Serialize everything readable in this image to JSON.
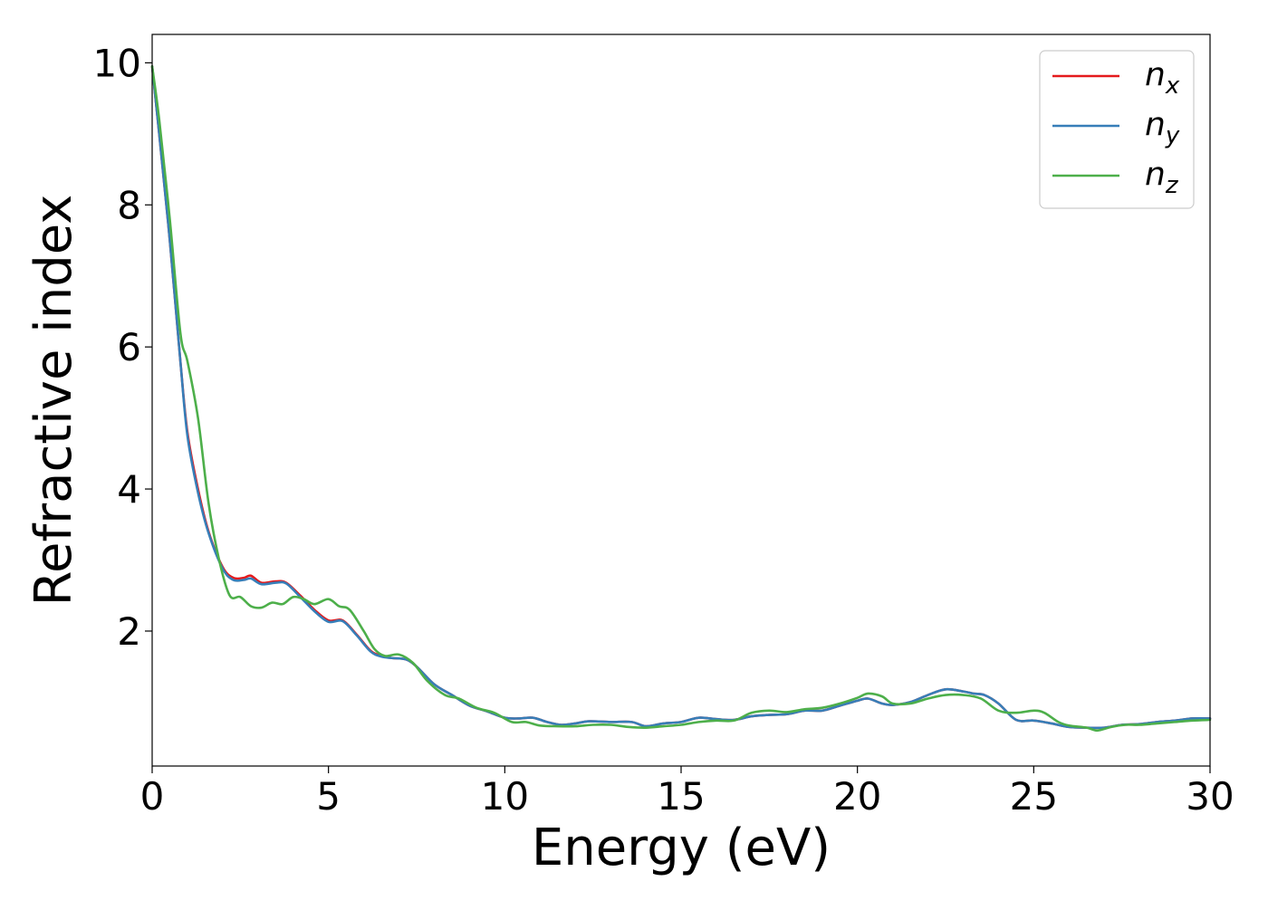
{
  "chart_data": {
    "type": "line",
    "xlabel": "Energy (eV)",
    "ylabel": "Refractive index",
    "xlim": [
      0,
      30
    ],
    "ylim": [
      0.1,
      10.4
    ],
    "xticks": [
      "0",
      "5",
      "10",
      "15",
      "20",
      "25",
      "30"
    ],
    "yticks": [
      "2",
      "4",
      "6",
      "8",
      "10"
    ],
    "grid": false,
    "legend_position": "top-right",
    "series": [
      {
        "name": "n",
        "subscript": "x",
        "color": "#e41a1c",
        "x": [
          0,
          0.2,
          0.5,
          0.8,
          1.0,
          1.3,
          1.6,
          2.0,
          2.3,
          2.6,
          2.8,
          3.1,
          3.5,
          3.8,
          4.2,
          4.6,
          5.0,
          5.4,
          5.8,
          6.2,
          6.5,
          6.8,
          7.2,
          7.5,
          8.0,
          8.5,
          9.0,
          9.5,
          10.0,
          10.4,
          10.8,
          11.2,
          11.6,
          12.0,
          12.4,
          13.0,
          13.6,
          14.0,
          14.5,
          15.0,
          15.5,
          16.0,
          16.5,
          17.0,
          17.5,
          18.0,
          18.5,
          19.0,
          19.5,
          20.0,
          20.3,
          20.7,
          21.0,
          21.5,
          22.0,
          22.5,
          23.0,
          23.3,
          23.6,
          24.0,
          24.5,
          25.0,
          25.5,
          26.0,
          26.5,
          27.0,
          27.5,
          28.0,
          28.5,
          29.0,
          29.5,
          30.0
        ],
        "y": [
          9.95,
          9.0,
          7.5,
          5.8,
          4.8,
          4.0,
          3.4,
          2.9,
          2.75,
          2.75,
          2.78,
          2.68,
          2.7,
          2.68,
          2.5,
          2.3,
          2.15,
          2.15,
          1.95,
          1.72,
          1.65,
          1.62,
          1.6,
          1.5,
          1.25,
          1.1,
          0.95,
          0.87,
          0.78,
          0.77,
          0.78,
          0.72,
          0.68,
          0.7,
          0.73,
          0.72,
          0.72,
          0.66,
          0.7,
          0.72,
          0.78,
          0.76,
          0.75,
          0.8,
          0.82,
          0.83,
          0.88,
          0.88,
          0.95,
          1.02,
          1.05,
          0.98,
          0.96,
          1.0,
          1.1,
          1.18,
          1.15,
          1.12,
          1.1,
          0.98,
          0.75,
          0.74,
          0.7,
          0.65,
          0.64,
          0.64,
          0.68,
          0.69,
          0.72,
          0.74,
          0.77,
          0.77
        ]
      },
      {
        "name": "n",
        "subscript": "y",
        "color": "#377eb8",
        "x": [
          0,
          0.2,
          0.5,
          0.8,
          1.0,
          1.3,
          1.6,
          2.0,
          2.3,
          2.6,
          2.8,
          3.1,
          3.5,
          3.8,
          4.2,
          4.6,
          5.0,
          5.4,
          5.8,
          6.2,
          6.5,
          6.8,
          7.2,
          7.5,
          8.0,
          8.5,
          9.0,
          9.5,
          10.0,
          10.4,
          10.8,
          11.2,
          11.6,
          12.0,
          12.4,
          13.0,
          13.6,
          14.0,
          14.5,
          15.0,
          15.5,
          16.0,
          16.5,
          17.0,
          17.5,
          18.0,
          18.5,
          19.0,
          19.5,
          20.0,
          20.3,
          20.7,
          21.0,
          21.5,
          22.0,
          22.5,
          23.0,
          23.3,
          23.6,
          24.0,
          24.5,
          25.0,
          25.5,
          26.0,
          26.5,
          27.0,
          27.5,
          28.0,
          28.5,
          29.0,
          29.5,
          30.0
        ],
        "y": [
          9.95,
          9.0,
          7.5,
          5.8,
          4.75,
          3.95,
          3.38,
          2.88,
          2.72,
          2.72,
          2.74,
          2.66,
          2.68,
          2.67,
          2.48,
          2.28,
          2.13,
          2.14,
          1.94,
          1.71,
          1.64,
          1.62,
          1.6,
          1.5,
          1.25,
          1.1,
          0.95,
          0.87,
          0.78,
          0.77,
          0.78,
          0.72,
          0.68,
          0.7,
          0.73,
          0.72,
          0.72,
          0.66,
          0.7,
          0.72,
          0.78,
          0.76,
          0.75,
          0.8,
          0.82,
          0.83,
          0.88,
          0.88,
          0.95,
          1.02,
          1.05,
          0.98,
          0.96,
          1.0,
          1.1,
          1.18,
          1.15,
          1.12,
          1.1,
          0.98,
          0.75,
          0.74,
          0.7,
          0.65,
          0.64,
          0.64,
          0.68,
          0.69,
          0.72,
          0.74,
          0.77,
          0.77
        ]
      },
      {
        "name": "n",
        "subscript": "z",
        "color": "#4daf4a",
        "x": [
          0,
          0.2,
          0.5,
          0.8,
          1.0,
          1.3,
          1.6,
          1.9,
          2.2,
          2.5,
          2.8,
          3.1,
          3.4,
          3.7,
          4.0,
          4.3,
          4.6,
          5.0,
          5.3,
          5.6,
          6.0,
          6.3,
          6.6,
          7.0,
          7.4,
          7.8,
          8.3,
          8.7,
          9.2,
          9.7,
          10.2,
          10.6,
          11.0,
          11.5,
          12.0,
          12.5,
          13.0,
          13.5,
          14.0,
          14.5,
          15.0,
          15.5,
          16.0,
          16.5,
          17.0,
          17.5,
          18.0,
          18.5,
          19.0,
          19.5,
          20.0,
          20.3,
          20.7,
          21.0,
          21.5,
          22.0,
          22.5,
          23.0,
          23.5,
          24.0,
          24.5,
          25.0,
          25.3,
          25.7,
          26.0,
          26.5,
          26.8,
          27.2,
          27.6,
          28.0,
          28.5,
          29.0,
          29.5,
          30.0
        ],
        "y": [
          9.95,
          9.2,
          7.8,
          6.2,
          5.8,
          5.0,
          3.8,
          3.0,
          2.5,
          2.48,
          2.35,
          2.33,
          2.4,
          2.38,
          2.48,
          2.45,
          2.38,
          2.45,
          2.35,
          2.3,
          2.0,
          1.75,
          1.65,
          1.67,
          1.55,
          1.3,
          1.1,
          1.05,
          0.92,
          0.85,
          0.72,
          0.72,
          0.67,
          0.66,
          0.66,
          0.68,
          0.68,
          0.65,
          0.64,
          0.66,
          0.68,
          0.72,
          0.74,
          0.74,
          0.85,
          0.88,
          0.86,
          0.9,
          0.92,
          0.98,
          1.06,
          1.12,
          1.08,
          0.98,
          0.98,
          1.05,
          1.1,
          1.1,
          1.05,
          0.88,
          0.85,
          0.88,
          0.85,
          0.72,
          0.67,
          0.64,
          0.6,
          0.65,
          0.68,
          0.68,
          0.7,
          0.72,
          0.74,
          0.75
        ]
      }
    ]
  }
}
